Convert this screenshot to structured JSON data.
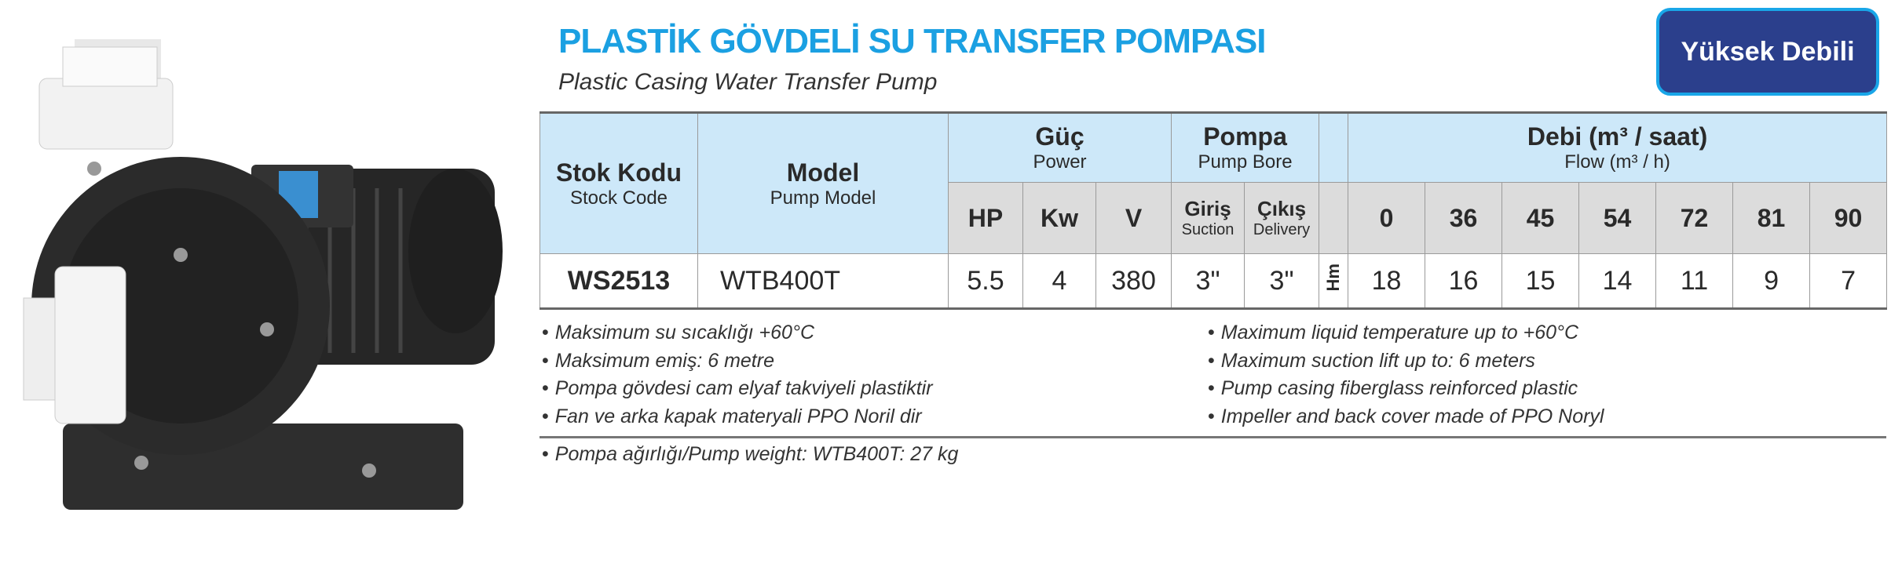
{
  "header": {
    "title": "PLASTİK GÖVDELİ SU TRANSFER POMPASI",
    "subtitle": "Plastic Casing Water Transfer Pump",
    "badge": "Yüksek Debili"
  },
  "colors": {
    "title": "#1ba0e2",
    "badge_bg": "#2b3f8c",
    "badge_border": "#19a6e8",
    "header_bg": "#cde8f9",
    "subheader_bg": "#dcdcdc"
  },
  "table": {
    "stock_code": {
      "tr": "Stok Kodu",
      "en": "Stock Code"
    },
    "model": {
      "tr": "Model",
      "en": "Pump Model"
    },
    "power": {
      "tr": "Güç",
      "en": "Power",
      "cols": [
        "HP",
        "Kw",
        "V"
      ]
    },
    "bore": {
      "tr": "Pompa",
      "en": "Pump Bore",
      "cols": [
        {
          "tr": "Giriş",
          "en": "Suction"
        },
        {
          "tr": "Çıkış",
          "en": "Delivery"
        }
      ]
    },
    "flow": {
      "tr": "Debi (m³ / saat)",
      "en": "Flow (m³ / h)",
      "cols": [
        "0",
        "36",
        "45",
        "54",
        "72",
        "81",
        "90"
      ]
    },
    "head_label": "Hm",
    "row": {
      "stock_code": "WS2513",
      "model": "WTB400T",
      "hp": "5.5",
      "kw": "4",
      "v": "380",
      "suction": "3\"",
      "delivery": "3\"",
      "head": [
        "18",
        "16",
        "15",
        "14",
        "11",
        "9",
        "7"
      ]
    }
  },
  "notes_tr": [
    "Maksimum su sıcaklığı +60°C",
    "Maksimum emiş: 6 metre",
    "Pompa gövdesi cam elyaf takviyeli plastiktir",
    "Fan ve arka kapak materyali PPO Noril dir"
  ],
  "notes_en": [
    "Maximum liquid temperature  up to +60°C",
    "Maximum suction lift up to: 6 meters",
    "Pump casing fiberglass reinforced plastic",
    "Impeller and back cover made of PPO Noryl"
  ],
  "weight_note": "Pompa ağırlığı/Pump weight: WTB400T: 27 kg"
}
